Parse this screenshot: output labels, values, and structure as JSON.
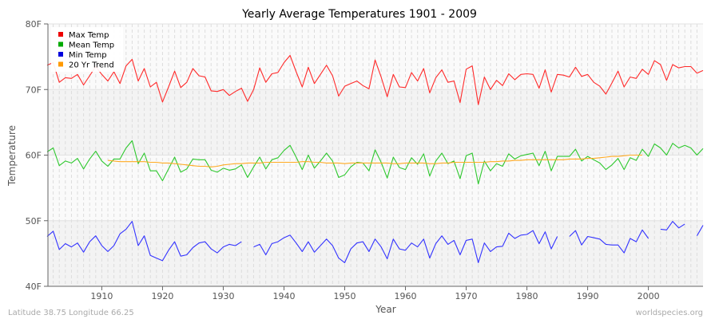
{
  "chart_data": {
    "type": "line",
    "title": "Yearly Average Temperatures 1901 - 2009",
    "xlabel": "Year",
    "ylabel": "Temperature",
    "xlim": [
      1901,
      2009
    ],
    "ylim": [
      40,
      80
    ],
    "y_ticks": [
      "40F",
      "50F",
      "60F",
      "70F",
      "80F"
    ],
    "y_tick_values": [
      40,
      50,
      60,
      70,
      80
    ],
    "x_ticks": [
      "1910",
      "1920",
      "1930",
      "1940",
      "1950",
      "1960",
      "1970",
      "1980",
      "1990",
      "2000"
    ],
    "x_tick_values": [
      1910,
      1920,
      1930,
      1940,
      1950,
      1960,
      1970,
      1980,
      1990,
      2000
    ],
    "grid": true,
    "legend_position": "top-left",
    "x": [
      1901,
      1902,
      1903,
      1904,
      1905,
      1906,
      1907,
      1908,
      1909,
      1910,
      1911,
      1912,
      1913,
      1914,
      1915,
      1916,
      1917,
      1918,
      1919,
      1920,
      1921,
      1922,
      1923,
      1924,
      1925,
      1926,
      1927,
      1928,
      1929,
      1930,
      1931,
      1932,
      1933,
      1934,
      1935,
      1936,
      1937,
      1938,
      1939,
      1940,
      1941,
      1942,
      1943,
      1944,
      1945,
      1946,
      1947,
      1948,
      1949,
      1950,
      1951,
      1952,
      1953,
      1954,
      1955,
      1956,
      1957,
      1958,
      1959,
      1960,
      1961,
      1962,
      1963,
      1964,
      1965,
      1966,
      1967,
      1968,
      1969,
      1970,
      1971,
      1972,
      1973,
      1974,
      1975,
      1976,
      1977,
      1978,
      1979,
      1980,
      1981,
      1982,
      1983,
      1984,
      1985,
      1986,
      1987,
      1988,
      1989,
      1990,
      1991,
      1992,
      1993,
      1994,
      1995,
      1996,
      1997,
      1998,
      1999,
      2000,
      2001,
      2002,
      2003,
      2004,
      2005,
      2006,
      2007,
      2008,
      2009
    ],
    "series": [
      {
        "name": "Max Temp",
        "color": "#ff2a2a",
        "legend_color": "#ee0000",
        "values": [
          73.7,
          74.1,
          71.1,
          71.8,
          71.7,
          72.3,
          70.7,
          72.1,
          73.5,
          72.3,
          71.3,
          72.7,
          70.9,
          73.6,
          74.6,
          71.3,
          73.2,
          70.4,
          71.1,
          68.1,
          70.4,
          72.8,
          70.3,
          71.1,
          73.2,
          72.1,
          71.9,
          69.8,
          69.7,
          70.0,
          69.1,
          69.7,
          70.2,
          68.2,
          70.0,
          73.3,
          71.1,
          72.4,
          72.6,
          74.1,
          75.2,
          72.7,
          70.4,
          73.4,
          70.9,
          72.3,
          73.7,
          72.1,
          69.0,
          70.5,
          70.9,
          71.3,
          70.6,
          70.1,
          74.5,
          71.9,
          68.9,
          72.3,
          70.4,
          70.3,
          72.6,
          71.3,
          73.2,
          69.5,
          71.8,
          73.0,
          71.1,
          71.3,
          68.0,
          73.1,
          73.6,
          67.7,
          71.9,
          70.0,
          71.4,
          70.6,
          72.4,
          71.5,
          72.3,
          72.4,
          72.3,
          70.2,
          73.0,
          69.6,
          72.3,
          72.2,
          71.9,
          73.4,
          72.0,
          72.3,
          71.1,
          70.5,
          69.3,
          71.0,
          72.8,
          70.4,
          71.9,
          71.7,
          73.1,
          72.3,
          74.4,
          73.8,
          71.4,
          73.8,
          73.3,
          73.5,
          73.5,
          72.5,
          72.9
        ]
      },
      {
        "name": "Mean Temp",
        "color": "#2ec82e",
        "legend_color": "#00aa00",
        "values": [
          60.5,
          61.1,
          58.4,
          59.1,
          58.8,
          59.5,
          57.9,
          59.4,
          60.6,
          59.1,
          58.3,
          59.4,
          59.4,
          61.1,
          62.2,
          58.7,
          60.3,
          57.6,
          57.6,
          56.1,
          57.9,
          59.7,
          57.4,
          57.9,
          59.4,
          59.3,
          59.3,
          57.7,
          57.4,
          58.0,
          57.7,
          57.9,
          58.5,
          56.6,
          58.2,
          59.7,
          57.9,
          59.3,
          59.6,
          60.7,
          61.5,
          59.7,
          57.8,
          60.0,
          58.0,
          59.1,
          60.3,
          59.1,
          56.6,
          57.0,
          58.2,
          58.9,
          58.8,
          57.6,
          60.8,
          58.9,
          56.5,
          59.7,
          58.1,
          57.8,
          59.6,
          58.6,
          60.2,
          56.8,
          59.1,
          60.3,
          58.7,
          59.1,
          56.4,
          59.9,
          60.3,
          55.6,
          59.1,
          57.6,
          58.7,
          58.3,
          60.2,
          59.4,
          59.9,
          60.1,
          60.3,
          58.4,
          60.6,
          57.6,
          59.8,
          59.8,
          59.8,
          60.9,
          59.1,
          59.8,
          59.3,
          58.8,
          57.8,
          58.5,
          59.5,
          57.8,
          59.6,
          59.2,
          60.9,
          59.8,
          61.7,
          61.1,
          60.0,
          61.8,
          61.1,
          61.5,
          61.1,
          60.0,
          61.0
        ]
      },
      {
        "name": "Min Temp",
        "color": "#3333ff",
        "legend_color": "#0000dd",
        "values": [
          47.6,
          48.4,
          45.6,
          46.5,
          46.0,
          46.6,
          45.2,
          46.8,
          47.7,
          46.2,
          45.3,
          46.2,
          48.0,
          48.7,
          49.9,
          46.2,
          47.7,
          44.7,
          44.3,
          43.9,
          45.5,
          46.8,
          44.6,
          44.8,
          45.9,
          46.6,
          46.8,
          45.7,
          45.1,
          46.0,
          46.4,
          46.2,
          46.8,
          null,
          46.0,
          46.4,
          44.8,
          46.5,
          46.8,
          47.4,
          47.8,
          46.6,
          45.3,
          46.8,
          45.2,
          46.2,
          47.2,
          46.2,
          44.3,
          43.6,
          45.7,
          46.6,
          46.8,
          45.3,
          47.2,
          46.0,
          44.2,
          47.2,
          45.7,
          45.5,
          46.6,
          46.0,
          47.2,
          44.3,
          46.5,
          47.7,
          46.4,
          47.0,
          44.8,
          47.0,
          47.2,
          43.6,
          46.6,
          45.3,
          46.0,
          46.1,
          48.1,
          47.3,
          47.8,
          47.9,
          48.5,
          46.5,
          48.3,
          45.7,
          47.6,
          null,
          47.6,
          48.5,
          46.3,
          47.6,
          47.4,
          47.2,
          46.4,
          46.3,
          46.3,
          45.1,
          47.3,
          46.8,
          48.6,
          47.3,
          null,
          48.7,
          48.6,
          49.9,
          48.9,
          49.5,
          null,
          47.7,
          49.3
        ]
      },
      {
        "name": "20 Yr Trend",
        "color": "#ffaa22",
        "legend_color": "#ff9900",
        "values": [
          null,
          null,
          null,
          null,
          null,
          null,
          null,
          null,
          null,
          null,
          59.2,
          59.1,
          59.0,
          59.0,
          59.0,
          59.0,
          59.0,
          58.9,
          58.9,
          58.8,
          58.8,
          58.7,
          58.6,
          58.5,
          58.4,
          58.3,
          58.3,
          58.2,
          58.3,
          58.5,
          58.6,
          58.7,
          58.7,
          58.8,
          58.8,
          58.8,
          58.9,
          58.9,
          58.9,
          58.9,
          58.9,
          58.9,
          59.0,
          59.0,
          58.9,
          58.9,
          58.8,
          58.8,
          58.8,
          58.7,
          58.8,
          58.8,
          58.8,
          58.8,
          58.8,
          58.8,
          58.8,
          58.7,
          58.7,
          58.8,
          58.8,
          58.8,
          58.8,
          58.7,
          58.7,
          58.8,
          58.8,
          58.9,
          58.9,
          58.9,
          58.9,
          58.9,
          58.9,
          59.0,
          59.0,
          59.1,
          59.1,
          59.2,
          59.2,
          59.3,
          59.3,
          59.3,
          59.3,
          59.3,
          59.3,
          59.3,
          59.4,
          59.4,
          59.4,
          59.5,
          59.5,
          59.6,
          59.7,
          59.8,
          59.8,
          59.9,
          60.0,
          60.0,
          60.0,
          null,
          null,
          null,
          null,
          null,
          null,
          null,
          null,
          null,
          null
        ]
      }
    ]
  },
  "footer": {
    "location": "Latitude 38.75 Longitude 66.25",
    "source": "worldspecies.org"
  }
}
